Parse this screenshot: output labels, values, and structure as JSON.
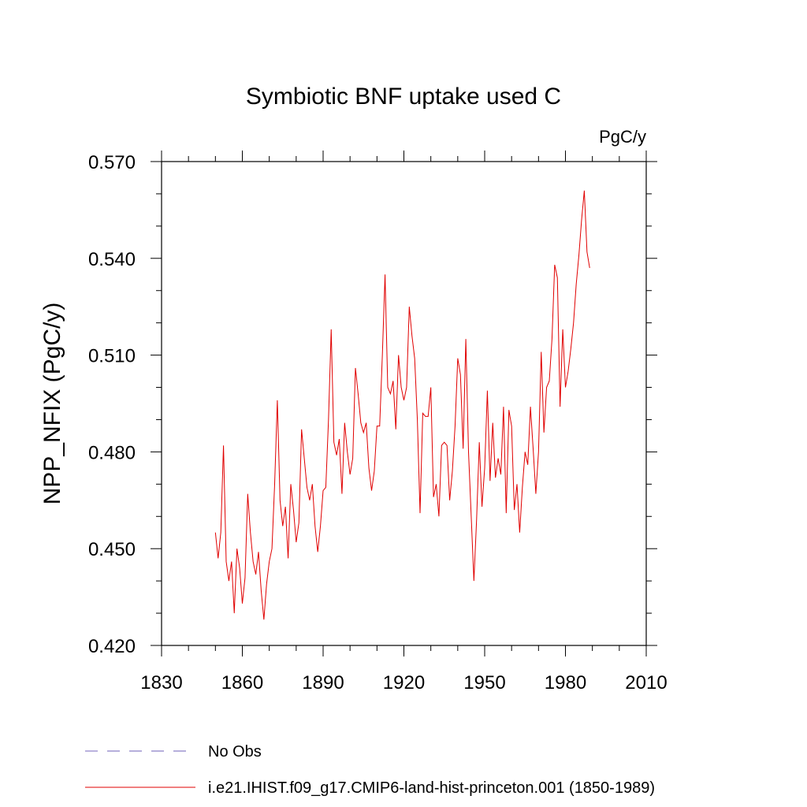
{
  "chart_data": {
    "type": "line",
    "title": "Symbiotic BNF uptake used C",
    "units_label": "PgC/y",
    "ylabel": "NPP_NFIX  (PgC/y)",
    "xlabel": "",
    "xlim": [
      1830,
      2010
    ],
    "ylim": [
      0.42,
      0.57
    ],
    "xticks": [
      1830,
      1860,
      1890,
      1920,
      1950,
      1980,
      2010
    ],
    "yticks": [
      "0.420",
      "0.450",
      "0.480",
      "0.510",
      "0.540",
      "0.570"
    ],
    "ytick_values": [
      0.42,
      0.45,
      0.48,
      0.51,
      0.54,
      0.57
    ],
    "grid": false,
    "legend_position": "bottom-left",
    "series": [
      {
        "name": "No Obs",
        "color": "#8b7fc8",
        "dash": "dashed",
        "values": []
      },
      {
        "name": "i.e21.IHIST.f09_g17.CMIP6-land-hist-princeton.001 (1850-1989)",
        "color": "#e00000",
        "dash": "solid",
        "x": [
          1850,
          1851,
          1852,
          1853,
          1854,
          1855,
          1856,
          1857,
          1858,
          1859,
          1860,
          1861,
          1862,
          1863,
          1864,
          1865,
          1866,
          1867,
          1868,
          1869,
          1870,
          1871,
          1872,
          1873,
          1874,
          1875,
          1876,
          1877,
          1878,
          1879,
          1880,
          1881,
          1882,
          1883,
          1884,
          1885,
          1886,
          1887,
          1888,
          1889,
          1890,
          1891,
          1892,
          1893,
          1894,
          1895,
          1896,
          1897,
          1898,
          1899,
          1900,
          1901,
          1902,
          1903,
          1904,
          1905,
          1906,
          1907,
          1908,
          1909,
          1910,
          1911,
          1912,
          1913,
          1914,
          1915,
          1916,
          1917,
          1918,
          1919,
          1920,
          1921,
          1922,
          1923,
          1924,
          1925,
          1926,
          1927,
          1928,
          1929,
          1930,
          1931,
          1932,
          1933,
          1934,
          1935,
          1936,
          1937,
          1938,
          1939,
          1940,
          1941,
          1942,
          1943,
          1944,
          1945,
          1946,
          1947,
          1948,
          1949,
          1950,
          1951,
          1952,
          1953,
          1954,
          1955,
          1956,
          1957,
          1958,
          1959,
          1960,
          1961,
          1962,
          1963,
          1964,
          1965,
          1966,
          1967,
          1968,
          1969,
          1970,
          1971,
          1972,
          1973,
          1974,
          1975,
          1976,
          1977,
          1978,
          1979,
          1980,
          1981,
          1982,
          1983,
          1984,
          1985,
          1986,
          1987,
          1988,
          1989
        ],
        "values": [
          0.455,
          0.447,
          0.455,
          0.482,
          0.446,
          0.44,
          0.446,
          0.43,
          0.45,
          0.444,
          0.433,
          0.441,
          0.467,
          0.455,
          0.446,
          0.442,
          0.449,
          0.437,
          0.428,
          0.439,
          0.446,
          0.45,
          0.47,
          0.496,
          0.465,
          0.457,
          0.463,
          0.447,
          0.47,
          0.462,
          0.452,
          0.458,
          0.487,
          0.478,
          0.469,
          0.465,
          0.47,
          0.457,
          0.449,
          0.457,
          0.468,
          0.469,
          0.49,
          0.518,
          0.483,
          0.479,
          0.484,
          0.467,
          0.489,
          0.48,
          0.473,
          0.478,
          0.506,
          0.498,
          0.489,
          0.486,
          0.489,
          0.475,
          0.468,
          0.474,
          0.488,
          0.488,
          0.51,
          0.535,
          0.5,
          0.498,
          0.502,
          0.487,
          0.51,
          0.5,
          0.496,
          0.5,
          0.525,
          0.516,
          0.509,
          0.49,
          0.461,
          0.492,
          0.491,
          0.491,
          0.5,
          0.466,
          0.47,
          0.46,
          0.482,
          0.483,
          0.482,
          0.465,
          0.474,
          0.488,
          0.509,
          0.504,
          0.481,
          0.515,
          0.48,
          0.46,
          0.44,
          0.459,
          0.483,
          0.463,
          0.475,
          0.499,
          0.471,
          0.489,
          0.472,
          0.478,
          0.473,
          0.494,
          0.461,
          0.493,
          0.488,
          0.462,
          0.47,
          0.455,
          0.469,
          0.48,
          0.476,
          0.494,
          0.481,
          0.467,
          0.48,
          0.511,
          0.486,
          0.5,
          0.502,
          0.515,
          0.538,
          0.534,
          0.494,
          0.518,
          0.5,
          0.505,
          0.512,
          0.52,
          0.532,
          0.541,
          0.552,
          0.561,
          0.542,
          0.537
        ]
      }
    ]
  }
}
